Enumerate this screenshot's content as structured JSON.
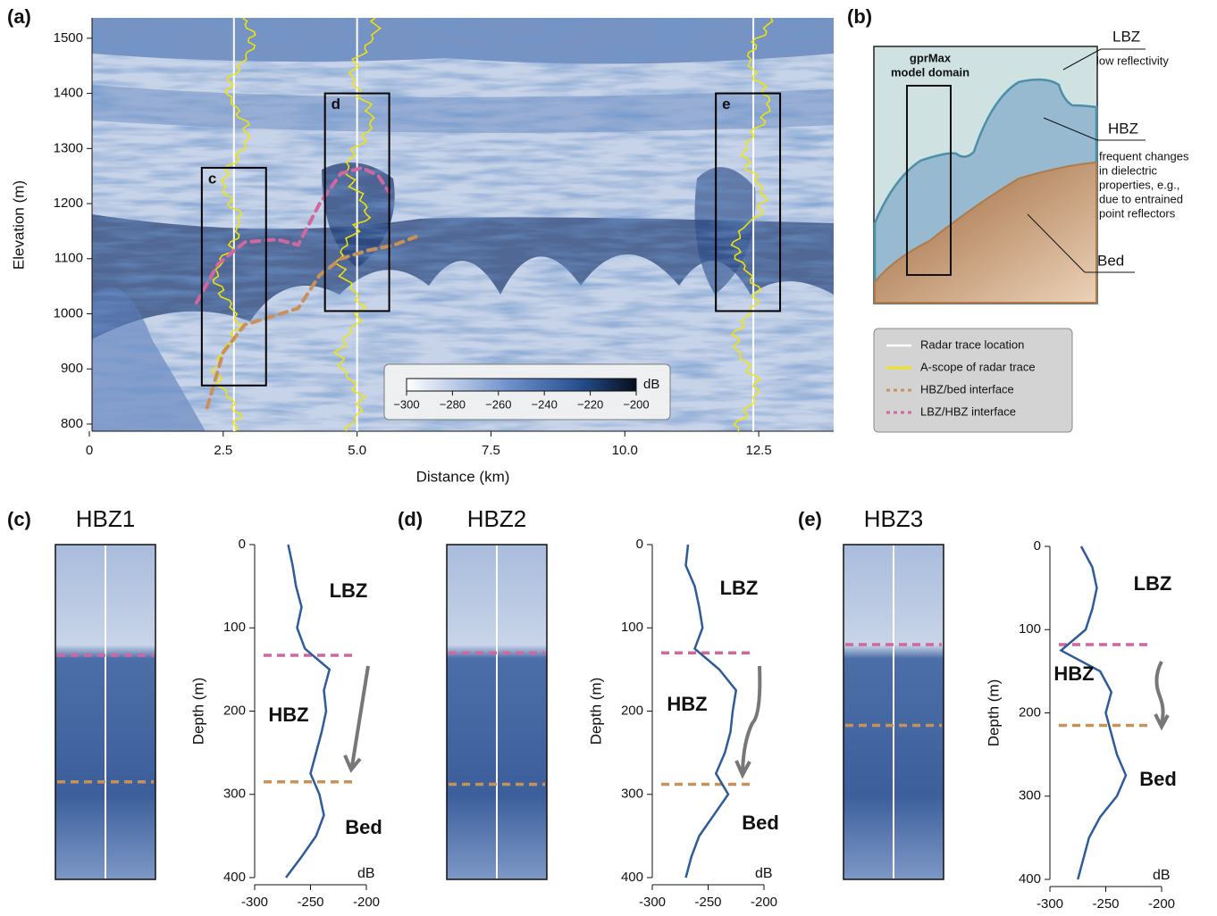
{
  "chart_data": [
    {
      "type": "radargram",
      "panel": "(a)",
      "xlabel": "Distance (km)",
      "ylabel": "Elevation (m)",
      "xlim": [
        0,
        13.9
      ],
      "ylim": [
        787,
        1537
      ],
      "xticks": [
        0,
        2.5,
        {
          "value": 5,
          "label": "5.0"
        },
        7.5,
        {
          "value": 10,
          "label": "10.0"
        },
        12.5
      ],
      "yticks": [
        800,
        900,
        1000,
        1100,
        1200,
        1300,
        1400,
        1500
      ],
      "boxes": [
        {
          "label": "c",
          "x": [
            2.1,
            3.3
          ],
          "y": [
            870,
            1265
          ]
        },
        {
          "label": "d",
          "x": [
            4.4,
            5.6
          ],
          "y": [
            1005,
            1400
          ]
        },
        {
          "label": "e",
          "x": [
            11.7,
            12.9
          ],
          "y": [
            1005,
            1400
          ]
        }
      ],
      "series": [
        {
          "name": "Radar trace location",
          "color": "#ffffff",
          "style": "vline",
          "x": [
            2.7,
            5.0,
            12.4
          ]
        },
        {
          "name": "A-scope of radar trace",
          "color": "#f2e600",
          "style": "trace"
        },
        {
          "name": "HBZ/bed interface",
          "color": "#c8915a",
          "style": "dashed",
          "x": [
            2.2,
            2.5,
            2.9,
            3.4,
            3.9,
            4.3,
            4.7,
            5.2,
            5.7,
            6.1
          ],
          "values": [
            830,
            930,
            980,
            995,
            1010,
            1070,
            1100,
            1115,
            1125,
            1140
          ]
        },
        {
          "name": "LBZ/HBZ interface",
          "color": "#d0679f",
          "style": "dashed",
          "x": [
            2.0,
            2.4,
            2.9,
            3.5,
            3.9,
            4.3,
            4.7,
            5.1,
            5.4,
            5.6
          ],
          "values": [
            1020,
            1090,
            1130,
            1135,
            1125,
            1200,
            1255,
            1265,
            1250,
            1220
          ]
        }
      ],
      "colorbar": {
        "label": "dB",
        "lim": [
          -300,
          -200
        ],
        "ticks": [
          {
            "value": -300,
            "label": "−300"
          },
          {
            "value": -280,
            "label": "−280"
          },
          {
            "value": -260,
            "label": "−260"
          },
          {
            "value": -240,
            "label": "−240"
          },
          {
            "value": -220,
            "label": "−220"
          },
          {
            "value": -200,
            "label": "−200"
          }
        ]
      }
    },
    {
      "type": "profile",
      "panel": "(c)",
      "image_title": "HBZ1",
      "xlabel": "dB",
      "ylabel": "Depth (m)",
      "xlim": [
        -300,
        -200
      ],
      "ylim": [
        400,
        0
      ],
      "xticks": [
        {
          "value": -300,
          "label": "-300"
        },
        {
          "value": -250,
          "label": "-250"
        },
        {
          "value": -200,
          "label": "-200"
        }
      ],
      "yticks": [
        0,
        100,
        200,
        300,
        400
      ],
      "color": "#2e5b9a",
      "depth": [
        0,
        25,
        50,
        75,
        100,
        125,
        150,
        175,
        200,
        225,
        250,
        275,
        300,
        325,
        350,
        375,
        400
      ],
      "values": [
        -270,
        -266,
        -263,
        -258,
        -262,
        -255,
        -233,
        -238,
        -236,
        -240,
        -245,
        -250,
        -242,
        -238,
        -245,
        -258,
        -272
      ],
      "lbz_hbz_depth": 133,
      "hbz_bed_depth": 285,
      "zone_labels": [
        "LBZ",
        "HBZ",
        "Bed"
      ]
    },
    {
      "type": "profile",
      "panel": "(d)",
      "image_title": "HBZ2",
      "xlabel": "dB",
      "ylabel": "Depth (m)",
      "xlim": [
        -300,
        -200
      ],
      "ylim": [
        400,
        0
      ],
      "xticks": [
        {
          "value": -300,
          "label": "-300"
        },
        {
          "value": -250,
          "label": "-250"
        },
        {
          "value": -200,
          "label": "-200"
        }
      ],
      "yticks": [
        0,
        100,
        200,
        300,
        400
      ],
      "color": "#2e5b9a",
      "depth": [
        0,
        25,
        50,
        75,
        100,
        125,
        150,
        175,
        200,
        225,
        250,
        275,
        300,
        325,
        350,
        375,
        400
      ],
      "values": [
        -268,
        -270,
        -262,
        -258,
        -255,
        -262,
        -240,
        -225,
        -228,
        -230,
        -235,
        -243,
        -232,
        -245,
        -258,
        -265,
        -270
      ],
      "lbz_hbz_depth": 130,
      "hbz_bed_depth": 288,
      "zone_labels": [
        "LBZ",
        "HBZ",
        "Bed"
      ]
    },
    {
      "type": "profile",
      "panel": "(e)",
      "image_title": "HBZ3",
      "xlabel": "dB",
      "ylabel": "Depth (m)",
      "xlim": [
        -300,
        -200
      ],
      "ylim": [
        400,
        0
      ],
      "xticks": [
        {
          "value": -300,
          "label": "-300"
        },
        {
          "value": -250,
          "label": "-250"
        },
        {
          "value": -200,
          "label": "-200"
        }
      ],
      "yticks": [
        0,
        100,
        200,
        300,
        400
      ],
      "color": "#2e5b9a",
      "depth": [
        0,
        25,
        50,
        75,
        100,
        125,
        150,
        175,
        200,
        225,
        250,
        275,
        300,
        325,
        350,
        375,
        400
      ],
      "values": [
        -272,
        -262,
        -258,
        -262,
        -268,
        -290,
        -255,
        -245,
        -250,
        -245,
        -240,
        -232,
        -240,
        -255,
        -265,
        -270,
        -275
      ],
      "lbz_hbz_depth": 118,
      "hbz_bed_depth": 215,
      "zone_labels": [
        "LBZ",
        "HBZ",
        "Bed"
      ]
    }
  ],
  "diagram": {
    "panel": "(b)",
    "domain_label": [
      "gprMax",
      "model domain"
    ],
    "lbz": "LBZ",
    "lbz_note": "low reflectivity",
    "hbz": "HBZ",
    "hbz_note": [
      "frequent changes",
      "in dielectric",
      "properties, e.g.,",
      "due to entrained",
      "point reflectors"
    ],
    "bed": "Bed"
  }
}
